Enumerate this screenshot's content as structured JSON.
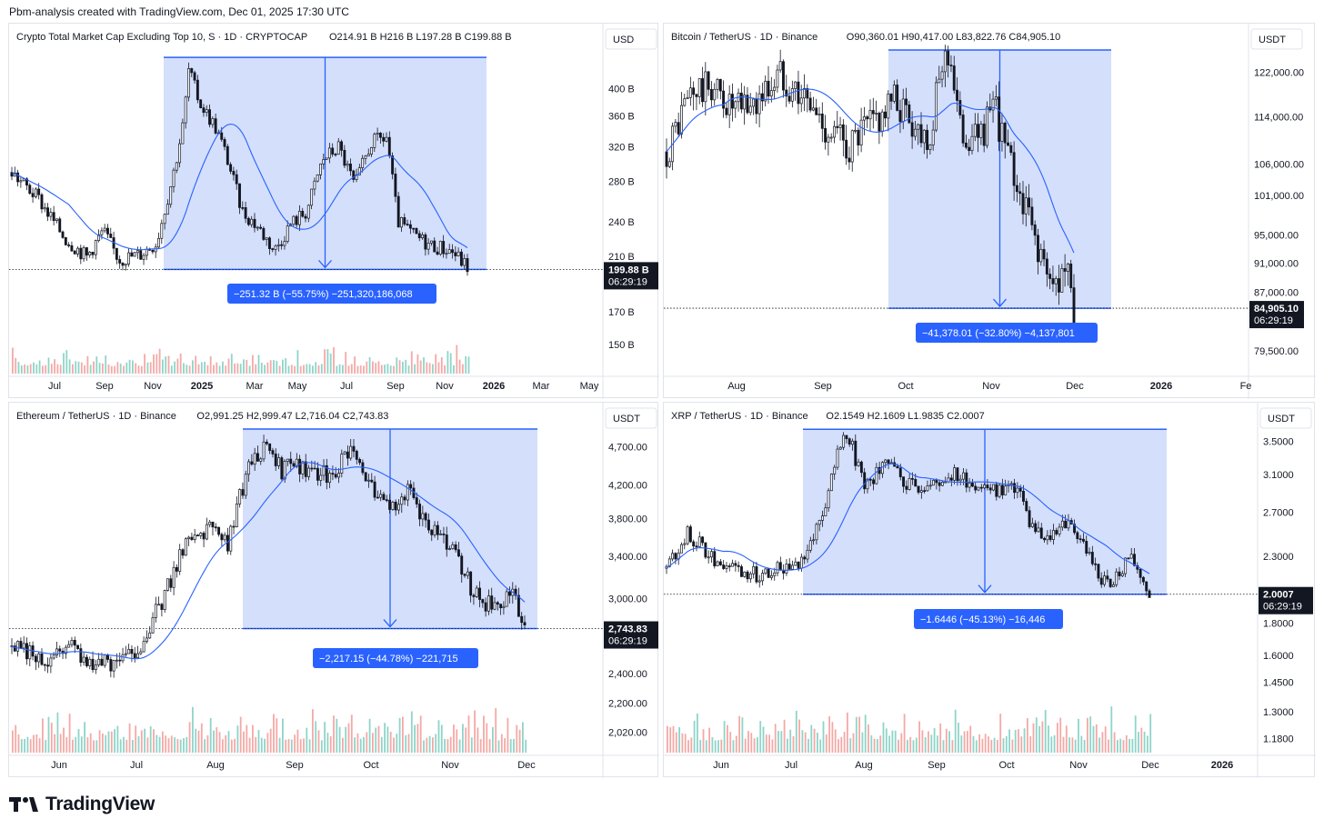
{
  "header": {
    "text": "Pbm-analysis created with TradingView.com, Dec 01, 2025 17:30 UTC"
  },
  "footer": {
    "brand": "TradingView"
  },
  "colors": {
    "up": "#131722",
    "down": "#131722",
    "ma": "#2962ff",
    "box_fill": "#c9d7fb",
    "box_stroke": "#2962ff",
    "label_bg": "#2962ff",
    "price_tag": "#131722",
    "vol_up": "#8fd4c9",
    "vol_down": "#f4a9a6",
    "grid_text": "#131722"
  },
  "chart_data": [
    {
      "type": "candlestick",
      "title": "Crypto Total Market Cap Excluding Top 10, S · 1D · CRYPTOCAP",
      "ohlc": "O214.91 B  H216 B  L197.28 B  C199.88 B",
      "currency": "USD",
      "scale": "log",
      "y_ticks": [
        "400 B",
        "360 B",
        "320 B",
        "280 B",
        "240 B",
        "210 B",
        "170 B",
        "150 B"
      ],
      "y_tick_values": [
        400,
        360,
        320,
        280,
        240,
        210,
        170,
        150
      ],
      "ylim": [
        135,
        470
      ],
      "x_ticks": [
        "Jul",
        "Sep",
        "Nov",
        "2025",
        "Mar",
        "May",
        "Jul",
        "Sep",
        "Nov",
        "2026",
        "Mar",
        "May"
      ],
      "last_price": "199.88 B",
      "last_value": 199.88,
      "countdown": "06:29:19",
      "measure_label": "−251.32 B (−55.75%) −251,320,186,068",
      "range_high": 450.6,
      "range_low": 199.88,
      "series_path": [
        [
          0,
          290
        ],
        [
          5,
          262
        ],
        [
          10,
          225
        ],
        [
          14,
          210
        ],
        [
          17,
          232
        ],
        [
          20,
          208
        ],
        [
          24,
          212
        ],
        [
          27,
          222
        ],
        [
          30,
          285
        ],
        [
          32,
          350
        ],
        [
          33,
          430
        ],
        [
          35,
          380
        ],
        [
          38,
          345
        ],
        [
          40,
          310
        ],
        [
          43,
          250
        ],
        [
          46,
          235
        ],
        [
          49,
          215
        ],
        [
          52,
          238
        ],
        [
          55,
          250
        ],
        [
          58,
          305
        ],
        [
          61,
          320
        ],
        [
          64,
          275
        ],
        [
          67,
          325
        ],
        [
          70,
          332
        ],
        [
          72,
          240
        ],
        [
          75,
          228
        ],
        [
          78,
          220
        ],
        [
          82,
          215
        ],
        [
          85,
          202
        ]
      ],
      "series_x": [
        0,
        85
      ],
      "total_x": [
        0,
        118
      ]
    },
    {
      "type": "candlestick",
      "title": "Bitcoin / TetherUS · 1D · Binance",
      "ohlc": "O90,360.01  H90,417.00  L83,822.76  C84,905.10",
      "currency": "USDT",
      "scale": "log",
      "y_ticks": [
        "122,000.00",
        "114,000.00",
        "106,000.00",
        "101,000.00",
        "95,000.00",
        "91,000.00",
        "87,000.00",
        "79,500.00"
      ],
      "y_tick_values": [
        122000,
        114000,
        106000,
        101000,
        95000,
        91000,
        87000,
        79500
      ],
      "ylim": [
        77000,
        127000
      ],
      "x_ticks": [
        "Aug",
        "Sep",
        "Oct",
        "Nov",
        "Dec",
        "2026",
        "Fe"
      ],
      "last_price": "84,905.10",
      "last_value": 84905.1,
      "countdown": "06:29:19",
      "measure_label": "−41,378.01 (−32.80%) −4,137,801",
      "range_high": 126283,
      "range_low": 84905,
      "series_path": [
        [
          0,
          108000
        ],
        [
          5,
          118000
        ],
        [
          10,
          119500
        ],
        [
          15,
          115000
        ],
        [
          20,
          117000
        ],
        [
          25,
          122000
        ],
        [
          30,
          117500
        ],
        [
          35,
          112000
        ],
        [
          40,
          109000
        ],
        [
          45,
          113000
        ],
        [
          50,
          117000
        ],
        [
          55,
          112000
        ],
        [
          58,
          111000
        ],
        [
          60,
          124000
        ],
        [
          62,
          126000
        ],
        [
          64,
          112000
        ],
        [
          67,
          110000
        ],
        [
          70,
          113000
        ],
        [
          72,
          115000
        ],
        [
          75,
          106000
        ],
        [
          78,
          100000
        ],
        [
          81,
          94000
        ],
        [
          84,
          87000
        ],
        [
          87,
          91000
        ],
        [
          89,
          84900
        ]
      ],
      "series_x": [
        0,
        89
      ],
      "total_x": [
        0,
        128
      ]
    },
    {
      "type": "candlestick",
      "title": "Ethereum / TetherUS · 1D · Binance",
      "ohlc": "O2,991.25  H2,999.47  L2,716.04  C2,743.83",
      "currency": "USDT",
      "scale": "log",
      "y_ticks": [
        "4,700.00",
        "4,200.00",
        "3,800.00",
        "3,400.00",
        "3,000.00",
        "2,400.00",
        "2,200.00",
        "2,020.00"
      ],
      "y_tick_values": [
        4700,
        4200,
        3800,
        3400,
        3000,
        2400,
        2200,
        2020
      ],
      "ylim": [
        1900,
        5050
      ],
      "x_ticks": [
        "Jun",
        "Jul",
        "Aug",
        "Sep",
        "Oct",
        "Nov",
        "Dec"
      ],
      "last_price": "2,743.83",
      "last_value": 2743.83,
      "countdown": "06:29:19",
      "measure_label": "−2,217.15 (−44.78%) −221,715",
      "range_high": 4956,
      "range_low": 2743.83,
      "series_path": [
        [
          0,
          2600
        ],
        [
          6,
          2500
        ],
        [
          10,
          2650
        ],
        [
          14,
          2450
        ],
        [
          18,
          2500
        ],
        [
          22,
          2600
        ],
        [
          26,
          3000
        ],
        [
          30,
          3600
        ],
        [
          34,
          3700
        ],
        [
          37,
          3500
        ],
        [
          40,
          4300
        ],
        [
          43,
          4700
        ],
        [
          46,
          4400
        ],
        [
          50,
          4450
        ],
        [
          54,
          4300
        ],
        [
          58,
          4600
        ],
        [
          61,
          4300
        ],
        [
          64,
          3900
        ],
        [
          68,
          4100
        ],
        [
          72,
          3700
        ],
        [
          76,
          3400
        ],
        [
          80,
          3000
        ],
        [
          83,
          2900
        ],
        [
          86,
          3050
        ],
        [
          88,
          2744
        ]
      ],
      "series_x": [
        0,
        88
      ],
      "total_x": [
        0,
        88
      ]
    },
    {
      "type": "candlestick",
      "title": "XRP / TetherUS · 1D · Binance",
      "ohlc": "O2.1549  H2.1609  L1.9835  C2.0007",
      "currency": "USDT",
      "scale": "log",
      "y_ticks": [
        "3.5000",
        "3.1000",
        "2.7000",
        "2.3000",
        "1.8000",
        "1.6000",
        "1.4500",
        "1.3000",
        "1.1800"
      ],
      "y_tick_values": [
        3.5,
        3.1,
        2.7,
        2.3,
        1.8,
        1.6,
        1.45,
        1.3,
        1.18
      ],
      "ylim": [
        1.12,
        3.75
      ],
      "x_ticks": [
        "Jun",
        "Jul",
        "Aug",
        "Sep",
        "Oct",
        "Nov",
        "Dec",
        "2026"
      ],
      "last_price": "2.0007",
      "last_value": 2.0007,
      "countdown": "06:29:19",
      "measure_label": "−1.6446 (−45.13%) −16,446",
      "range_high": 3.66,
      "range_low": 2.0007,
      "series_path": [
        [
          0,
          2.2
        ],
        [
          4,
          2.5
        ],
        [
          8,
          2.3
        ],
        [
          12,
          2.2
        ],
        [
          16,
          2.15
        ],
        [
          20,
          2.2
        ],
        [
          24,
          2.25
        ],
        [
          28,
          2.6
        ],
        [
          31,
          3.3
        ],
        [
          33,
          3.6
        ],
        [
          36,
          3.0
        ],
        [
          40,
          3.2
        ],
        [
          44,
          3.0
        ],
        [
          48,
          2.95
        ],
        [
          52,
          3.1
        ],
        [
          56,
          3.0
        ],
        [
          60,
          2.9
        ],
        [
          64,
          3.0
        ],
        [
          66,
          2.6
        ],
        [
          69,
          2.4
        ],
        [
          72,
          2.6
        ],
        [
          75,
          2.5
        ],
        [
          78,
          2.2
        ],
        [
          81,
          2.05
        ],
        [
          84,
          2.3
        ],
        [
          86,
          2.2
        ],
        [
          88,
          2.0
        ]
      ],
      "series_x": [
        0,
        88
      ],
      "total_x": [
        0,
        112
      ]
    }
  ]
}
